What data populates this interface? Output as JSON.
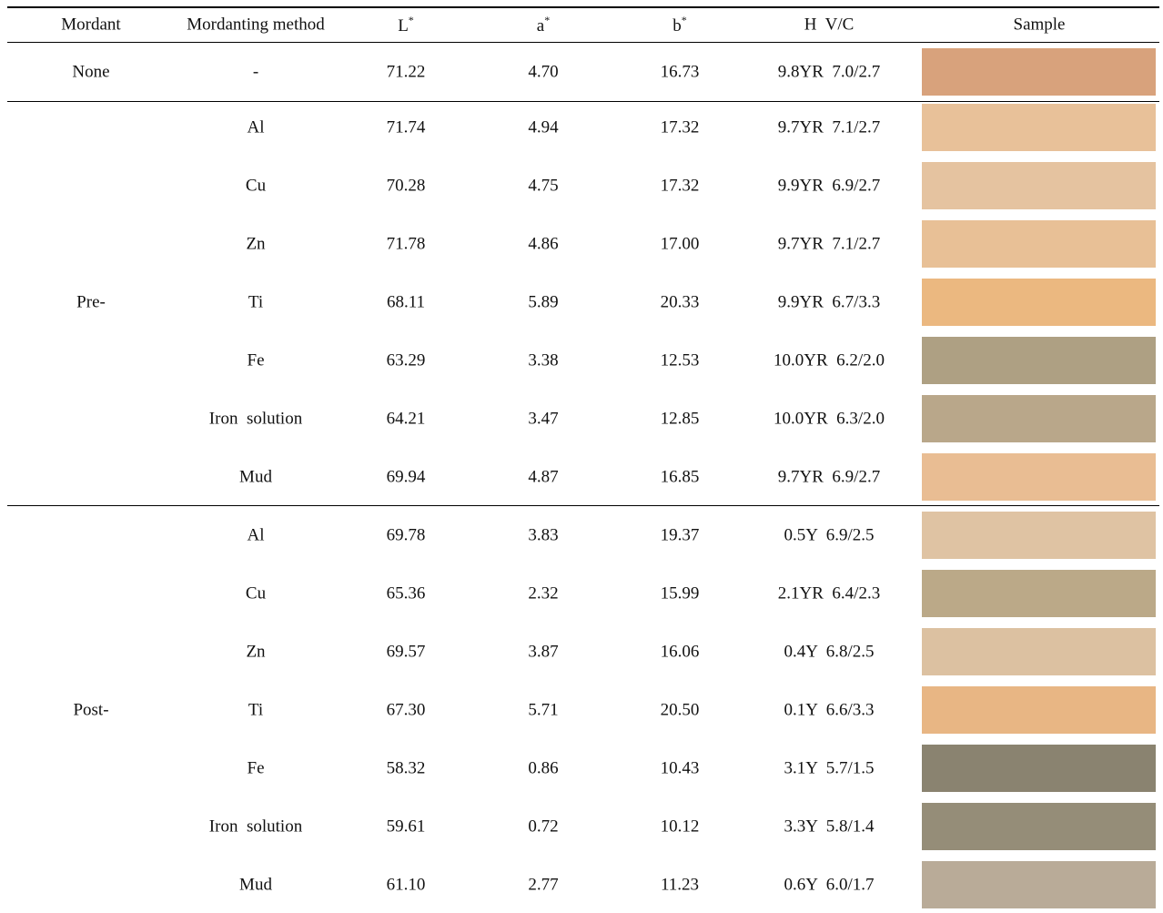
{
  "table": {
    "headers": [
      {
        "text": "Mordant"
      },
      {
        "text": "Mordanting method"
      },
      {
        "text": "L",
        "sup": "*"
      },
      {
        "text": "a",
        "sup": "*"
      },
      {
        "text": "b",
        "sup": "*"
      },
      {
        "text": "H  V/C"
      },
      {
        "text": "Sample"
      }
    ],
    "groups": [
      {
        "mordant": "None",
        "rows": [
          [
            "-",
            "71.22",
            "4.70",
            "16.73",
            "9.8YR  7.0/2.7"
          ]
        ],
        "swatches": [
          "#d8a27c"
        ]
      },
      {
        "mordant": "Pre-",
        "rows": [
          [
            "Al",
            "71.74",
            "4.94",
            "17.32",
            "9.7YR  7.1/2.7"
          ],
          [
            "Cu",
            "70.28",
            "4.75",
            "17.32",
            "9.9YR  6.9/2.7"
          ],
          [
            "Zn",
            "71.78",
            "4.86",
            "17.00",
            "9.7YR  7.1/2.7"
          ],
          [
            "Ti",
            "68.11",
            "5.89",
            "20.33",
            "9.9YR  6.7/3.3"
          ],
          [
            "Fe",
            "63.29",
            "3.38",
            "12.53",
            "10.0YR  6.2/2.0"
          ],
          [
            "Iron  solution",
            "64.21",
            "3.47",
            "12.85",
            "10.0YR  6.3/2.0"
          ],
          [
            "Mud",
            "69.94",
            "4.87",
            "16.85",
            "9.7YR  6.9/2.7"
          ]
        ],
        "swatches": [
          "#e8c199",
          "#e5c3a0",
          "#e8c096",
          "#ebb880",
          "#aea083",
          "#b9a78a",
          "#e9bd93"
        ]
      },
      {
        "mordant": "Post-",
        "rows": [
          [
            "Al",
            "69.78",
            "3.83",
            "19.37",
            "0.5Y  6.9/2.5"
          ],
          [
            "Cu",
            "65.36",
            "2.32",
            "15.99",
            "2.1YR  6.4/2.3"
          ],
          [
            "Zn",
            "69.57",
            "3.87",
            "16.06",
            "0.4Y  6.8/2.5"
          ],
          [
            "Ti",
            "67.30",
            "5.71",
            "20.50",
            "0.1Y  6.6/3.3"
          ],
          [
            "Fe",
            "58.32",
            "0.86",
            "10.43",
            "3.1Y  5.7/1.5"
          ],
          [
            "Iron  solution",
            "59.61",
            "0.72",
            "10.12",
            "3.3Y  5.8/1.4"
          ],
          [
            "Mud",
            "61.10",
            "2.77",
            "11.23",
            "0.6Y  6.0/1.7"
          ]
        ],
        "swatches": [
          "#dfc3a3",
          "#bba988",
          "#dcc1a1",
          "#e8b684",
          "#8a8370",
          "#958d78",
          "#b9ab98"
        ]
      }
    ]
  }
}
